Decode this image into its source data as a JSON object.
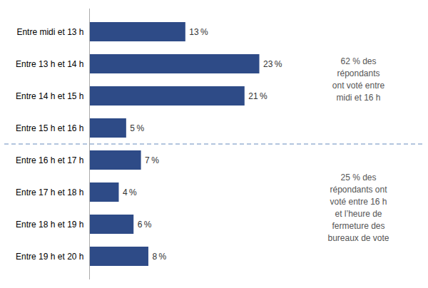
{
  "chart_data": {
    "type": "bar",
    "orientation": "horizontal",
    "categories": [
      "Entre midi et 13 h",
      "Entre 13 h et 14 h",
      "Entre 14 h et 15 h",
      "Entre 15 h et 16 h",
      "Entre 16 h et 17 h",
      "Entre 17 h et 18 h",
      "Entre 18 h et 19 h",
      "Entre 19 h et 20 h"
    ],
    "values": [
      13,
      23,
      21,
      5,
      7,
      4,
      6,
      8
    ],
    "value_labels": [
      "13 %",
      "23 %",
      "21 %",
      "5 %",
      "7 %",
      "4 %",
      "6 %",
      "8 %"
    ],
    "data_labels": true,
    "color": "#2E4B87",
    "xlim": [
      0,
      27
    ],
    "tick_labels": "y",
    "annotations": [
      "62 % des\nrépondants\nont voté entre\nmidi et 16 h",
      "25 % des\nrépondants ont\nvoté entre 16 h\net l’heure de\nfermeture des\nbureaux de vote"
    ]
  }
}
